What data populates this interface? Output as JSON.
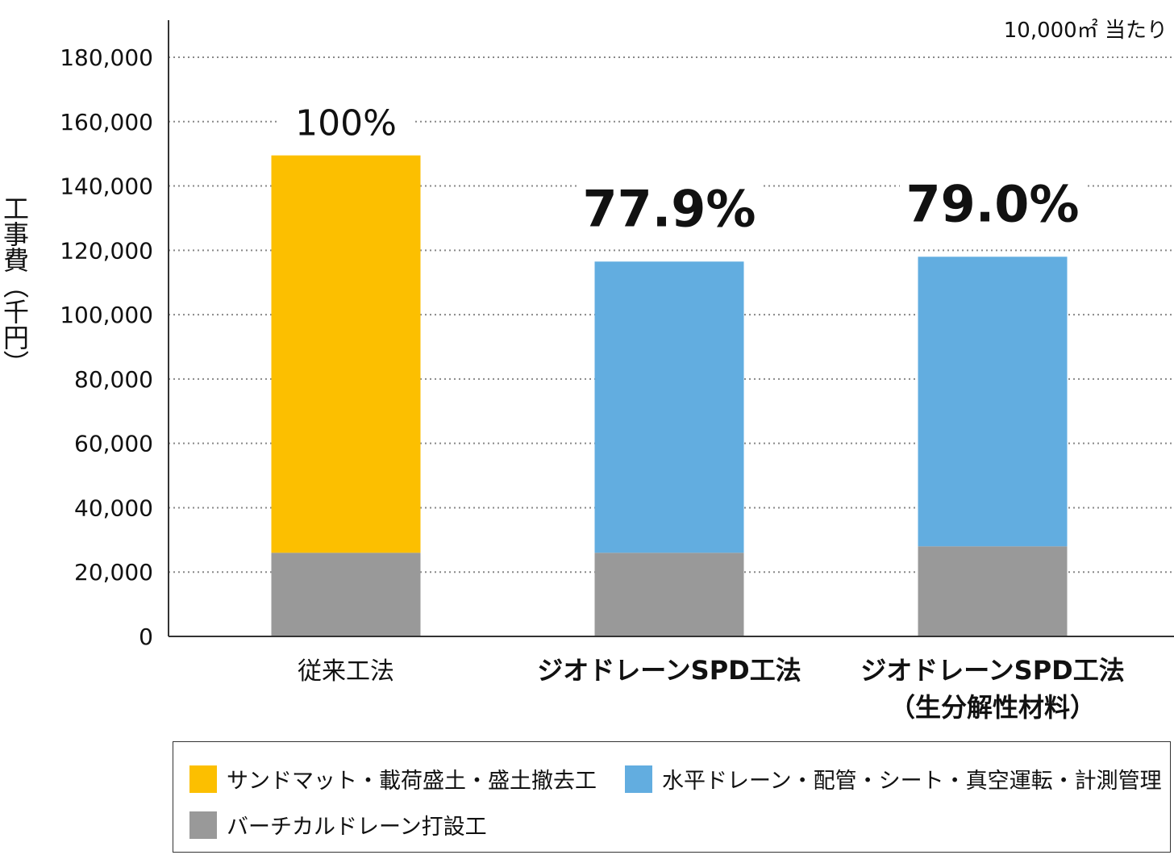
{
  "chart_data": {
    "type": "bar",
    "stacked": true,
    "note": "10,000㎡ 当たり",
    "ylabel": "工事費（千円）",
    "ylim": [
      0,
      190000
    ],
    "yticks": [
      0,
      20000,
      40000,
      60000,
      80000,
      100000,
      120000,
      140000,
      160000,
      180000
    ],
    "ytick_labels": [
      "0",
      "20,000",
      "40,000",
      "60,000",
      "80,000",
      "100,000",
      "120,000",
      "140,000",
      "160,000",
      "180,000"
    ],
    "grid": true,
    "categories": [
      {
        "lines": [
          "従来工法"
        ],
        "bold": false
      },
      {
        "lines": [
          "ジオドレーンSPD工法"
        ],
        "bold": true
      },
      {
        "lines": [
          "ジオドレーンSPD工法",
          "（生分解性材料）"
        ],
        "bold": true
      }
    ],
    "bars": [
      {
        "segments": [
          {
            "series": 2,
            "value": 26000
          },
          {
            "series": 0,
            "value": 123500
          }
        ],
        "total": 149500,
        "percent": "100%",
        "percent_bold": false
      },
      {
        "segments": [
          {
            "series": 2,
            "value": 26000
          },
          {
            "series": 1,
            "value": 90500
          }
        ],
        "total": 116500,
        "percent": "77.9%",
        "percent_bold": true
      },
      {
        "segments": [
          {
            "series": 2,
            "value": 28000
          },
          {
            "series": 1,
            "value": 90000
          }
        ],
        "total": 118000,
        "percent": "79.0%",
        "percent_bold": true
      }
    ],
    "series": [
      {
        "name": "サンドマット・載荷盛土・盛土撤去工",
        "color": "#FCBF00"
      },
      {
        "name": "水平ドレーン・配管・シート・真空運転・計測管理",
        "color": "#62ADE0"
      },
      {
        "name": "バーチカルドレーン打設工",
        "color": "#999999"
      }
    ],
    "legend_position": "bottom"
  }
}
